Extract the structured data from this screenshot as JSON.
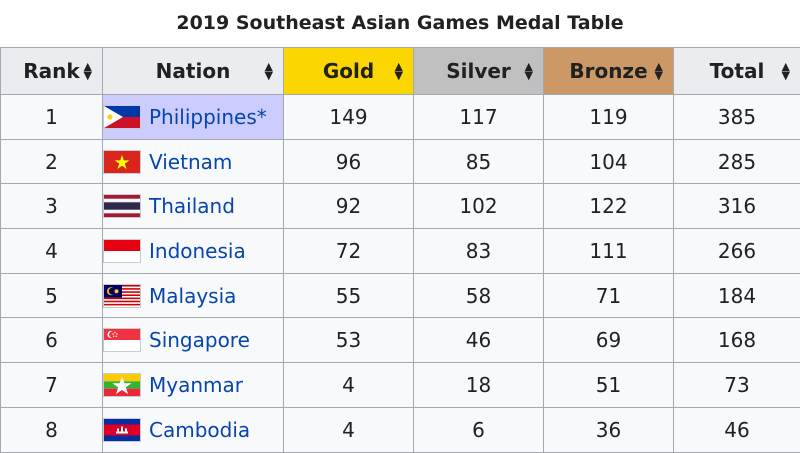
{
  "title": "2019 Southeast Asian Games Medal Table",
  "columns": [
    "Rank",
    "Nation",
    "Gold",
    "Silver",
    "Bronze",
    "Total"
  ],
  "header_colors": {
    "rank": "#eaecf0",
    "nation": "#eaecf0",
    "gold": "#fcd600",
    "silver": "#c0c0c0",
    "bronze": "#cc9966",
    "total": "#eaecf0"
  },
  "host_highlight_color": "#ccccff",
  "link_color": "#0645ad",
  "rows": [
    {
      "rank": "1",
      "nation": "Philippines*",
      "flag": "philippines-flag-icon",
      "gold": "149",
      "silver": "117",
      "bronze": "119",
      "total": "385"
    },
    {
      "rank": "2",
      "nation": "Vietnam",
      "flag": "vietnam-flag-icon",
      "gold": "96",
      "silver": "85",
      "bronze": "104",
      "total": "285"
    },
    {
      "rank": "3",
      "nation": "Thailand",
      "flag": "thailand-flag-icon",
      "gold": "92",
      "silver": "102",
      "bronze": "122",
      "total": "316"
    },
    {
      "rank": "4",
      "nation": "Indonesia",
      "flag": "indonesia-flag-icon",
      "gold": "72",
      "silver": "83",
      "bronze": "111",
      "total": "266"
    },
    {
      "rank": "5",
      "nation": "Malaysia",
      "flag": "malaysia-flag-icon",
      "gold": "55",
      "silver": "58",
      "bronze": "71",
      "total": "184"
    },
    {
      "rank": "6",
      "nation": "Singapore",
      "flag": "singapore-flag-icon",
      "gold": "53",
      "silver": "46",
      "bronze": "69",
      "total": "168"
    },
    {
      "rank": "7",
      "nation": "Myanmar",
      "flag": "myanmar-flag-icon",
      "gold": "4",
      "silver": "18",
      "bronze": "51",
      "total": "73"
    },
    {
      "rank": "8",
      "nation": "Cambodia",
      "flag": "cambodia-flag-icon",
      "gold": "4",
      "silver": "6",
      "bronze": "36",
      "total": "46"
    }
  ]
}
